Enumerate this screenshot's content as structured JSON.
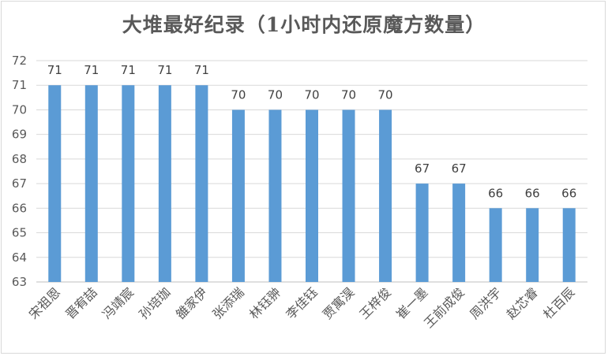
{
  "chart_data": {
    "type": "bar",
    "title": "大堆最好纪录（1小时内还原魔方数量）",
    "xlabel": "",
    "ylabel": "",
    "ylim": [
      63,
      72
    ],
    "yticks": [
      63,
      64,
      65,
      66,
      67,
      68,
      69,
      70,
      71,
      72
    ],
    "grid": true,
    "legend": "none",
    "bar_color": "#5b9bd5",
    "categories": [
      "宋祖恩",
      "晋宥喆",
      "冯靖宸",
      "孙培珈",
      "雒家伊",
      "张添瑞",
      "林钰翀",
      "李佳钰",
      "贾寓淏",
      "王梓俊",
      "崔一墨",
      "王前成俊",
      "周洪宇",
      "赵芯睿",
      "杜百辰"
    ],
    "values": [
      71,
      71,
      71,
      71,
      71,
      70,
      70,
      70,
      70,
      70,
      67,
      67,
      66,
      66,
      66
    ]
  }
}
